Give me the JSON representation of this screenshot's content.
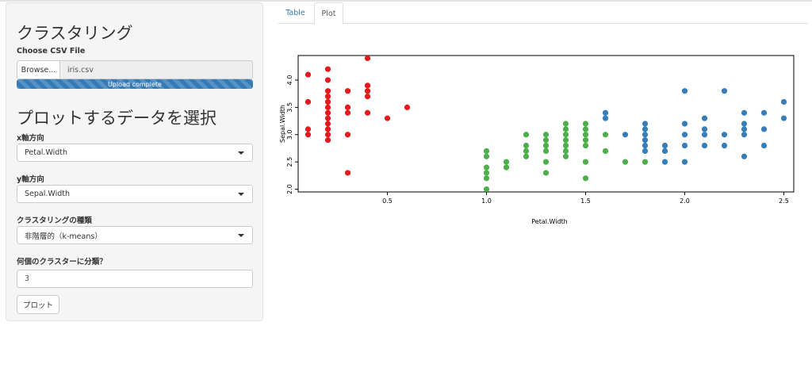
{
  "sidebar": {
    "title": "クラスタリング",
    "file": {
      "label": "Choose CSV File",
      "browse_label": "Browse...",
      "file_name": "iris.csv",
      "progress_text": "Upload complete",
      "progress": 1.0
    },
    "section_title": "プロットするデータを選択",
    "x_axis": {
      "label": "x軸方向",
      "value": "Petal.Width"
    },
    "y_axis": {
      "label": "y軸方向",
      "value": "Sepal.Width"
    },
    "cluster_type": {
      "label": "クラスタリングの種類",
      "value": "非階層的（k-means）"
    },
    "n_clusters": {
      "label": "何個のクラスターに分類？",
      "value": "3"
    },
    "plot_button": "プロット"
  },
  "tabs": [
    {
      "label": "Table",
      "active": false
    },
    {
      "label": "Plot",
      "active": true
    }
  ],
  "colors": {
    "cluster1": "#e41a1c",
    "cluster2": "#4daf4a",
    "cluster3": "#377eb8",
    "accent": "#337ab7"
  },
  "chart_data": {
    "type": "scatter",
    "xlabel": "Petal.Width",
    "ylabel": "Sepal.Width",
    "xlim": [
      0.05,
      2.55
    ],
    "ylim": [
      1.95,
      4.45
    ],
    "xticks": [
      "0.5",
      "1.0",
      "1.5",
      "2.0",
      "2.5"
    ],
    "yticks": [
      "2.0",
      "2.5",
      "3.0",
      "3.5",
      "4.0"
    ],
    "series": [
      {
        "color": "#e41a1c",
        "points": [
          [
            0.1,
            4.1
          ],
          [
            0.1,
            3.6
          ],
          [
            0.1,
            3.1
          ],
          [
            0.1,
            3.0
          ],
          [
            0.2,
            4.2
          ],
          [
            0.2,
            4.0
          ],
          [
            0.2,
            3.8
          ],
          [
            0.2,
            3.7
          ],
          [
            0.2,
            3.6
          ],
          [
            0.2,
            3.5
          ],
          [
            0.2,
            3.4
          ],
          [
            0.2,
            3.3
          ],
          [
            0.2,
            3.2
          ],
          [
            0.2,
            3.1
          ],
          [
            0.2,
            3.0
          ],
          [
            0.2,
            2.9
          ],
          [
            0.3,
            3.8
          ],
          [
            0.3,
            3.5
          ],
          [
            0.3,
            3.4
          ],
          [
            0.3,
            3.0
          ],
          [
            0.3,
            2.3
          ],
          [
            0.4,
            4.4
          ],
          [
            0.4,
            3.9
          ],
          [
            0.4,
            3.8
          ],
          [
            0.4,
            3.7
          ],
          [
            0.4,
            3.4
          ],
          [
            0.5,
            3.3
          ],
          [
            0.6,
            3.5
          ]
        ]
      },
      {
        "color": "#4daf4a",
        "points": [
          [
            1.0,
            2.7
          ],
          [
            1.0,
            2.6
          ],
          [
            1.0,
            2.4
          ],
          [
            1.0,
            2.3
          ],
          [
            1.0,
            2.2
          ],
          [
            1.0,
            2.0
          ],
          [
            1.1,
            2.5
          ],
          [
            1.1,
            2.4
          ],
          [
            1.2,
            3.0
          ],
          [
            1.2,
            2.8
          ],
          [
            1.2,
            2.7
          ],
          [
            1.2,
            2.6
          ],
          [
            1.3,
            3.0
          ],
          [
            1.3,
            2.9
          ],
          [
            1.3,
            2.8
          ],
          [
            1.3,
            2.7
          ],
          [
            1.3,
            2.5
          ],
          [
            1.3,
            2.3
          ],
          [
            1.4,
            3.2
          ],
          [
            1.4,
            3.1
          ],
          [
            1.4,
            3.0
          ],
          [
            1.4,
            2.9
          ],
          [
            1.4,
            2.8
          ],
          [
            1.4,
            2.7
          ],
          [
            1.4,
            2.6
          ],
          [
            1.5,
            3.2
          ],
          [
            1.5,
            3.1
          ],
          [
            1.5,
            3.0
          ],
          [
            1.5,
            2.9
          ],
          [
            1.5,
            2.8
          ],
          [
            1.5,
            2.5
          ],
          [
            1.5,
            2.2
          ],
          [
            1.6,
            3.0
          ],
          [
            1.6,
            2.7
          ],
          [
            1.7,
            2.5
          ],
          [
            1.8,
            2.5
          ]
        ]
      },
      {
        "color": "#377eb8",
        "points": [
          [
            1.6,
            3.4
          ],
          [
            1.6,
            3.3
          ],
          [
            1.7,
            3.0
          ],
          [
            1.8,
            3.2
          ],
          [
            1.8,
            3.1
          ],
          [
            1.8,
            3.0
          ],
          [
            1.8,
            2.9
          ],
          [
            1.8,
            2.8
          ],
          [
            1.8,
            2.7
          ],
          [
            1.9,
            2.8
          ],
          [
            1.9,
            2.7
          ],
          [
            1.9,
            2.5
          ],
          [
            2.0,
            3.8
          ],
          [
            2.0,
            3.2
          ],
          [
            2.0,
            3.0
          ],
          [
            2.0,
            2.8
          ],
          [
            2.0,
            2.5
          ],
          [
            2.1,
            3.3
          ],
          [
            2.1,
            3.1
          ],
          [
            2.1,
            3.0
          ],
          [
            2.1,
            2.8
          ],
          [
            2.2,
            3.8
          ],
          [
            2.2,
            3.0
          ],
          [
            2.2,
            2.8
          ],
          [
            2.3,
            3.4
          ],
          [
            2.3,
            3.2
          ],
          [
            2.3,
            3.1
          ],
          [
            2.3,
            3.0
          ],
          [
            2.3,
            2.6
          ],
          [
            2.4,
            3.4
          ],
          [
            2.4,
            3.1
          ],
          [
            2.4,
            2.8
          ],
          [
            2.5,
            3.6
          ],
          [
            2.5,
            3.3
          ]
        ]
      }
    ]
  }
}
